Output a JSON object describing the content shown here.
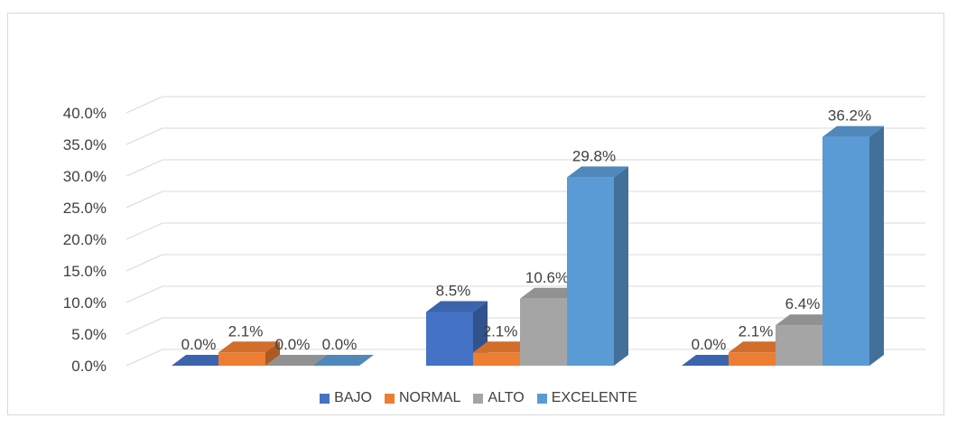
{
  "chart_data": {
    "type": "bar",
    "categories": [
      "",
      "",
      ""
    ],
    "series": [
      {
        "name": "BAJO",
        "color": "#4472c4",
        "values": [
          0.0,
          8.5,
          0.0
        ]
      },
      {
        "name": "NORMAL",
        "color": "#ed7d31",
        "values": [
          2.1,
          2.1,
          2.1
        ]
      },
      {
        "name": "ALTO",
        "color": "#a5a5a5",
        "values": [
          0.0,
          10.6,
          6.4
        ]
      },
      {
        "name": "EXCELENTE",
        "color": "#5b9bd5",
        "values": [
          0.0,
          29.8,
          36.2
        ]
      }
    ],
    "data_labels": [
      [
        "0.0%",
        "2.1%",
        "0.0%",
        "0.0%"
      ],
      [
        "8.5%",
        "2.1%",
        "10.6%",
        "29.8%"
      ],
      [
        "0.0%",
        "2.1%",
        "6.4%",
        "36.2%"
      ]
    ],
    "y_ticks": [
      "0.0%",
      "5.0%",
      "10.0%",
      "15.0%",
      "20.0%",
      "25.0%",
      "30.0%",
      "35.0%",
      "40.0%"
    ],
    "ylim": [
      0,
      40
    ],
    "grid": true,
    "three_d": true,
    "legend_position": "bottom"
  }
}
